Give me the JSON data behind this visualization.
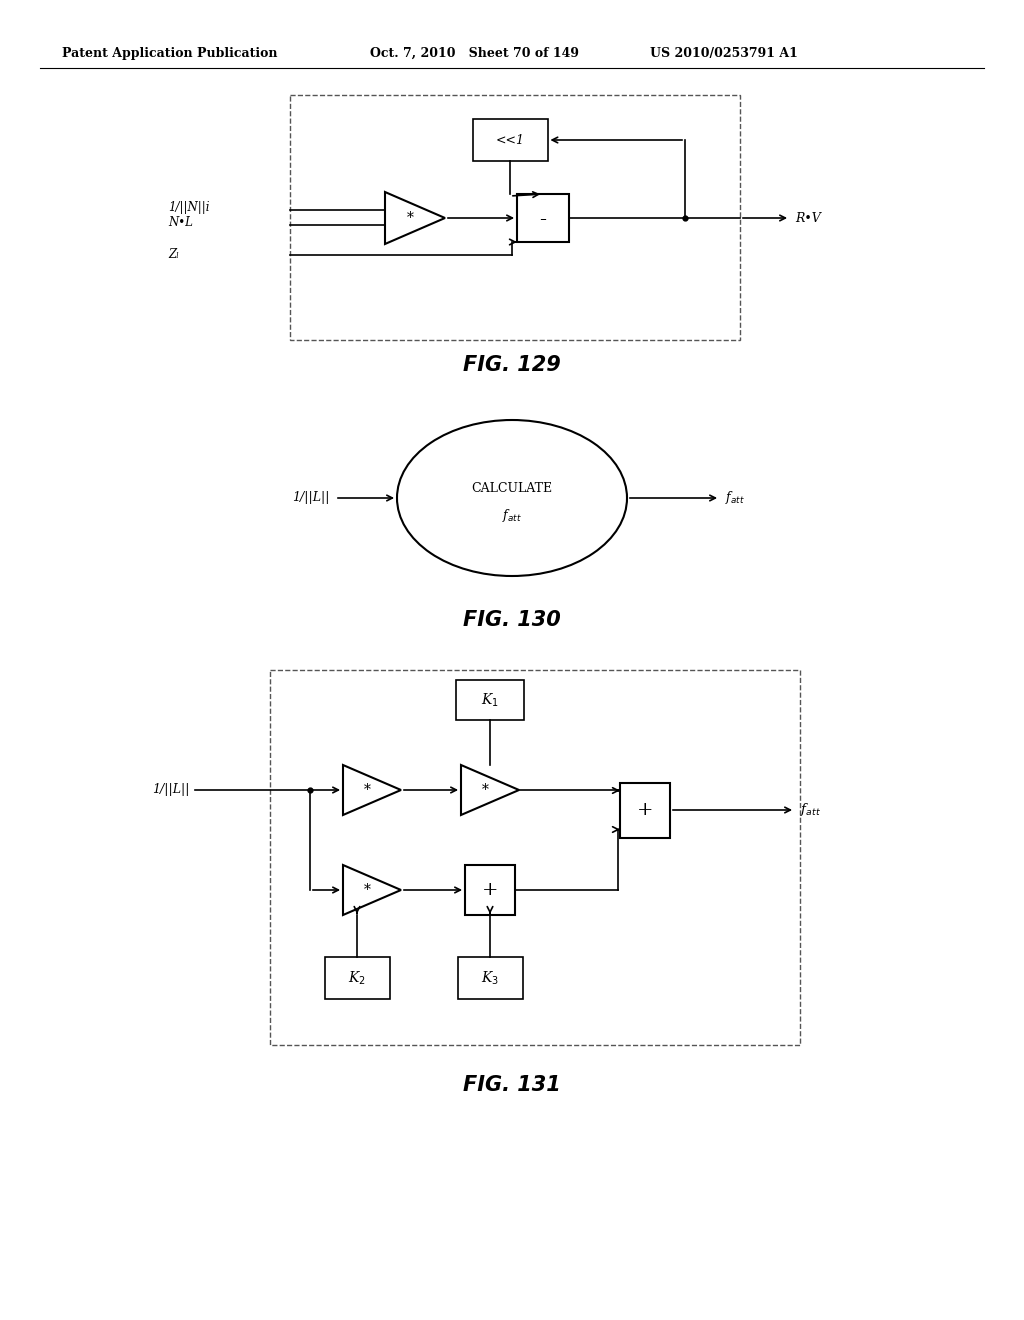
{
  "bg_color": "#ffffff",
  "header_left": "Patent Application Publication",
  "header_mid": "Oct. 7, 2010   Sheet 70 of 149",
  "header_right": "US 2010/0253791 A1",
  "fig129_label": "FIG. 129",
  "fig130_label": "FIG. 130",
  "fig131_label": "FIG. 131"
}
